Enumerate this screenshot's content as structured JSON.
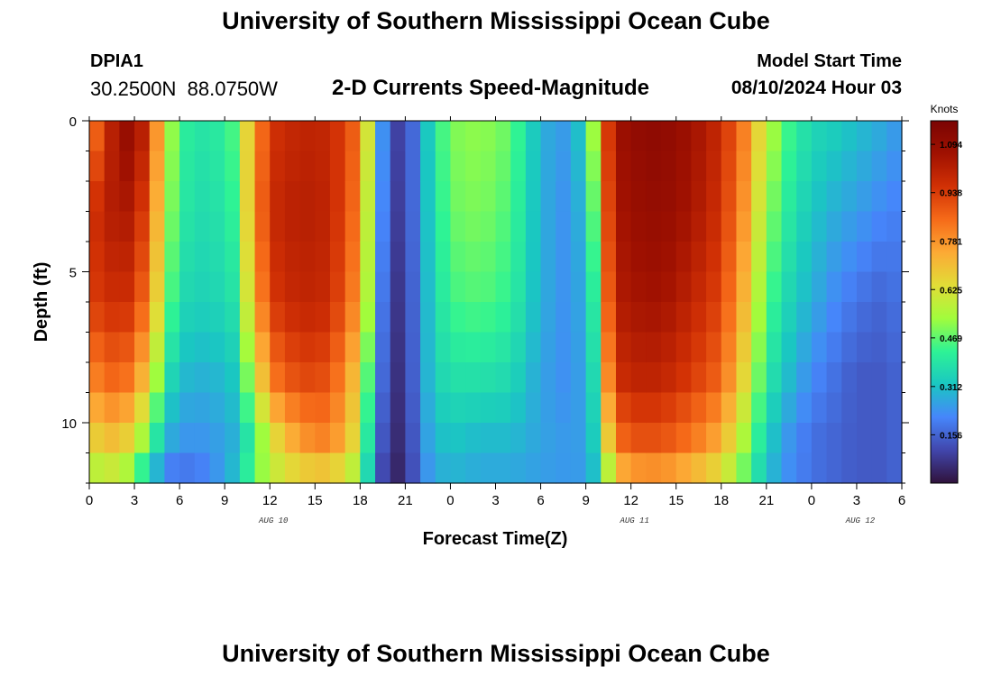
{
  "header": {
    "title": "University of Southern Mississippi Ocean Cube",
    "station_id": "DPIA1",
    "station_coords": "30.2500N  88.0750W",
    "chart_title": "2-D Currents Speed-Magnitude",
    "model_start_label": "Model Start Time",
    "model_start_value": "08/10/2024 Hour 03"
  },
  "footer": {
    "title": "University of Southern Mississippi Ocean Cube"
  },
  "chart_data": {
    "type": "heatmap",
    "title": "2-D Currents Speed-Magnitude",
    "xlabel": "Forecast Time(Z)",
    "ylabel": "Depth (ft)",
    "colorbar_label": "Knots",
    "colorbar_ticks": [
      0.156,
      0.312,
      0.469,
      0.625,
      0.781,
      0.938,
      1.094
    ],
    "colorbar_range": [
      0.0,
      1.17
    ],
    "colorbar_colors": [
      "#30123b",
      "#4146ac",
      "#4686fb",
      "#1ac7c2",
      "#2ef395",
      "#a2fc3c",
      "#e1dd37",
      "#fcaa35",
      "#f66b19",
      "#d23105",
      "#a01101",
      "#7a0403"
    ],
    "x_tick_labels": [
      "0",
      "3",
      "6",
      "9",
      "12",
      "15",
      "18",
      "21",
      "0",
      "3",
      "6",
      "9",
      "12",
      "15",
      "18",
      "21",
      "0",
      "3",
      "6"
    ],
    "x_range_hours": [
      0,
      54
    ],
    "day_labels": [
      {
        "label": "AUG 10",
        "hour": 12
      },
      {
        "label": "AUG 11",
        "hour": 36
      },
      {
        "label": "AUG 12",
        "hour": 51
      }
    ],
    "y_tick_labels": [
      "0",
      "5",
      "10"
    ],
    "y_range_ft": [
      0,
      12
    ],
    "time_anchors_hours": [
      0,
      2,
      3,
      4,
      5,
      6,
      8,
      9.5,
      11,
      12,
      14,
      16,
      17.5,
      18.5,
      19.2,
      20,
      21,
      22,
      23,
      24,
      26,
      28,
      30,
      32,
      33,
      34,
      34.5,
      35,
      36,
      38,
      40,
      42,
      43.5,
      45,
      46.5,
      48,
      49.5,
      51,
      52.5,
      54
    ],
    "depth_rows": [
      {
        "depth_ft": 0,
        "speeds": [
          0.78,
          1.09,
          1.1,
          0.95,
          0.62,
          0.42,
          0.38,
          0.45,
          0.76,
          0.95,
          1.0,
          0.99,
          0.88,
          0.62,
          0.3,
          0.12,
          0.08,
          0.25,
          0.4,
          0.5,
          0.52,
          0.48,
          0.28,
          0.24,
          0.38,
          0.7,
          0.95,
          1.06,
          1.1,
          1.12,
          1.07,
          0.98,
          0.82,
          0.58,
          0.44,
          0.36,
          0.34,
          0.31,
          0.28,
          0.24
        ]
      },
      {
        "depth_ft": 3,
        "speeds": [
          0.95,
          1.05,
          1.02,
          0.88,
          0.58,
          0.4,
          0.36,
          0.42,
          0.78,
          0.98,
          1.02,
          1.0,
          0.86,
          0.58,
          0.28,
          0.1,
          0.08,
          0.25,
          0.38,
          0.48,
          0.5,
          0.45,
          0.28,
          0.22,
          0.33,
          0.6,
          0.92,
          1.04,
          1.08,
          1.1,
          1.05,
          0.96,
          0.78,
          0.52,
          0.4,
          0.32,
          0.28,
          0.25,
          0.22,
          0.2
        ]
      },
      {
        "depth_ft": 6,
        "speeds": [
          0.93,
          0.98,
          0.95,
          0.8,
          0.52,
          0.36,
          0.34,
          0.38,
          0.72,
          0.94,
          1.0,
          0.98,
          0.82,
          0.55,
          0.25,
          0.08,
          0.07,
          0.24,
          0.36,
          0.44,
          0.46,
          0.42,
          0.28,
          0.22,
          0.3,
          0.5,
          0.88,
          1.02,
          1.05,
          1.06,
          1.0,
          0.92,
          0.72,
          0.46,
          0.35,
          0.28,
          0.22,
          0.18,
          0.16,
          0.18
        ]
      },
      {
        "depth_ft": 8.5,
        "speeds": [
          0.8,
          0.88,
          0.8,
          0.66,
          0.4,
          0.3,
          0.28,
          0.32,
          0.58,
          0.82,
          0.92,
          0.9,
          0.72,
          0.46,
          0.22,
          0.07,
          0.06,
          0.24,
          0.34,
          0.38,
          0.38,
          0.36,
          0.26,
          0.22,
          0.28,
          0.44,
          0.8,
          0.96,
          1.0,
          1.0,
          0.94,
          0.86,
          0.65,
          0.4,
          0.3,
          0.22,
          0.18,
          0.14,
          0.14,
          0.16
        ]
      },
      {
        "depth_ft": 10.5,
        "speeds": [
          0.66,
          0.72,
          0.62,
          0.48,
          0.3,
          0.24,
          0.24,
          0.28,
          0.44,
          0.62,
          0.78,
          0.82,
          0.66,
          0.4,
          0.18,
          0.06,
          0.05,
          0.22,
          0.3,
          0.32,
          0.3,
          0.3,
          0.26,
          0.24,
          0.26,
          0.4,
          0.68,
          0.84,
          0.9,
          0.9,
          0.84,
          0.74,
          0.55,
          0.34,
          0.24,
          0.18,
          0.16,
          0.14,
          0.14,
          0.16
        ]
      },
      {
        "depth_ft": 12,
        "speeds": [
          0.52,
          0.55,
          0.44,
          0.3,
          0.18,
          0.16,
          0.2,
          0.3,
          0.48,
          0.56,
          0.62,
          0.64,
          0.54,
          0.34,
          0.14,
          0.04,
          0.04,
          0.2,
          0.26,
          0.28,
          0.26,
          0.26,
          0.25,
          0.24,
          0.25,
          0.34,
          0.52,
          0.66,
          0.72,
          0.74,
          0.68,
          0.6,
          0.46,
          0.3,
          0.22,
          0.18,
          0.16,
          0.14,
          0.14,
          0.16
        ]
      }
    ]
  }
}
